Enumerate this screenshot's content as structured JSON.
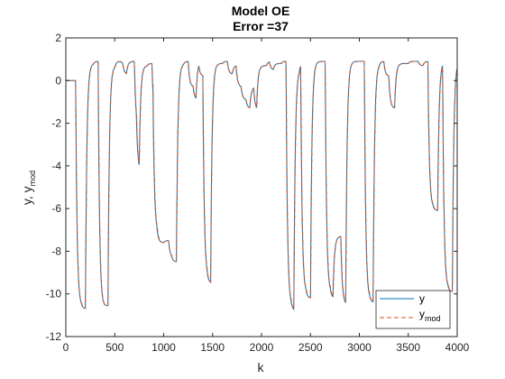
{
  "chart_data": {
    "type": "line",
    "title": "Model OE",
    "subtitle": "Error =37",
    "xlabel": "k",
    "ylabel_main": "y, y",
    "ylabel_sub": "mod",
    "xlim": [
      0,
      4000
    ],
    "ylim": [
      -12,
      2
    ],
    "xticks": [
      0,
      500,
      1000,
      1500,
      2000,
      2500,
      3000,
      3500,
      4000
    ],
    "yticks": [
      -12,
      -10,
      -8,
      -6,
      -4,
      -2,
      0,
      2
    ],
    "grid": false,
    "legend_position": "bottom-right",
    "levels": [
      [
        0,
        0
      ],
      [
        100,
        -10.6
      ],
      [
        160,
        -10.7
      ],
      [
        200,
        0.8
      ],
      [
        280,
        0.9
      ],
      [
        330,
        -10.6
      ],
      [
        400,
        -10.55
      ],
      [
        430,
        0.7
      ],
      [
        500,
        0.9
      ],
      [
        560,
        0.8
      ],
      [
        580,
        0.3
      ],
      [
        620,
        0.9
      ],
      [
        660,
        0.9
      ],
      [
        700,
        -2.3
      ],
      [
        720,
        -4.3
      ],
      [
        750,
        0.7
      ],
      [
        830,
        0.8
      ],
      [
        880,
        -1.8
      ],
      [
        890,
        -7.2
      ],
      [
        930,
        -7.6
      ],
      [
        1000,
        -7.5
      ],
      [
        1050,
        -8.3
      ],
      [
        1080,
        -8.5
      ],
      [
        1130,
        0.8
      ],
      [
        1200,
        0.9
      ],
      [
        1250,
        -0.3
      ],
      [
        1300,
        -0.9
      ],
      [
        1330,
        0.9
      ],
      [
        1360,
        0.2
      ],
      [
        1400,
        -9.3
      ],
      [
        1440,
        -9.5
      ],
      [
        1480,
        0.8
      ],
      [
        1600,
        0.9
      ],
      [
        1650,
        0.3
      ],
      [
        1700,
        0.7
      ],
      [
        1740,
        -0.3
      ],
      [
        1790,
        -0.9
      ],
      [
        1840,
        -1.3
      ],
      [
        1880,
        -0.3
      ],
      [
        1920,
        -1.4
      ],
      [
        1950,
        0.7
      ],
      [
        2050,
        0.9
      ],
      [
        2080,
        0.5
      ],
      [
        2120,
        0.8
      ],
      [
        2200,
        0.9
      ],
      [
        2250,
        -10.6
      ],
      [
        2300,
        -10.8
      ],
      [
        2330,
        0.6
      ],
      [
        2380,
        0.8
      ],
      [
        2400,
        -10.0
      ],
      [
        2450,
        -10.2
      ],
      [
        2500,
        0.9
      ],
      [
        2580,
        0.9
      ],
      [
        2650,
        -10.0
      ],
      [
        2700,
        -10.2
      ],
      [
        2730,
        -7.3
      ],
      [
        2780,
        -7.3
      ],
      [
        2810,
        -10.5
      ],
      [
        2860,
        0.9
      ],
      [
        3000,
        0.9
      ],
      [
        3050,
        -10.3
      ],
      [
        3100,
        -10.4
      ],
      [
        3140,
        0.8
      ],
      [
        3200,
        0.9
      ],
      [
        3250,
        0.2
      ],
      [
        3300,
        -1.3
      ],
      [
        3360,
        0.8
      ],
      [
        3500,
        0.9
      ],
      [
        3600,
        0.7
      ],
      [
        3650,
        0.9
      ],
      [
        3700,
        -6.0
      ],
      [
        3750,
        -6.1
      ],
      [
        3800,
        0.9
      ],
      [
        3850,
        -9.8
      ],
      [
        3900,
        -9.9
      ],
      [
        3950,
        0.9
      ],
      [
        4000,
        0.9
      ]
    ],
    "series": [
      {
        "name": "y",
        "color": "#0072BD",
        "style": "solid"
      },
      {
        "name": "y",
        "sub": "mod",
        "color": "#D95319",
        "style": "dashed"
      }
    ]
  }
}
